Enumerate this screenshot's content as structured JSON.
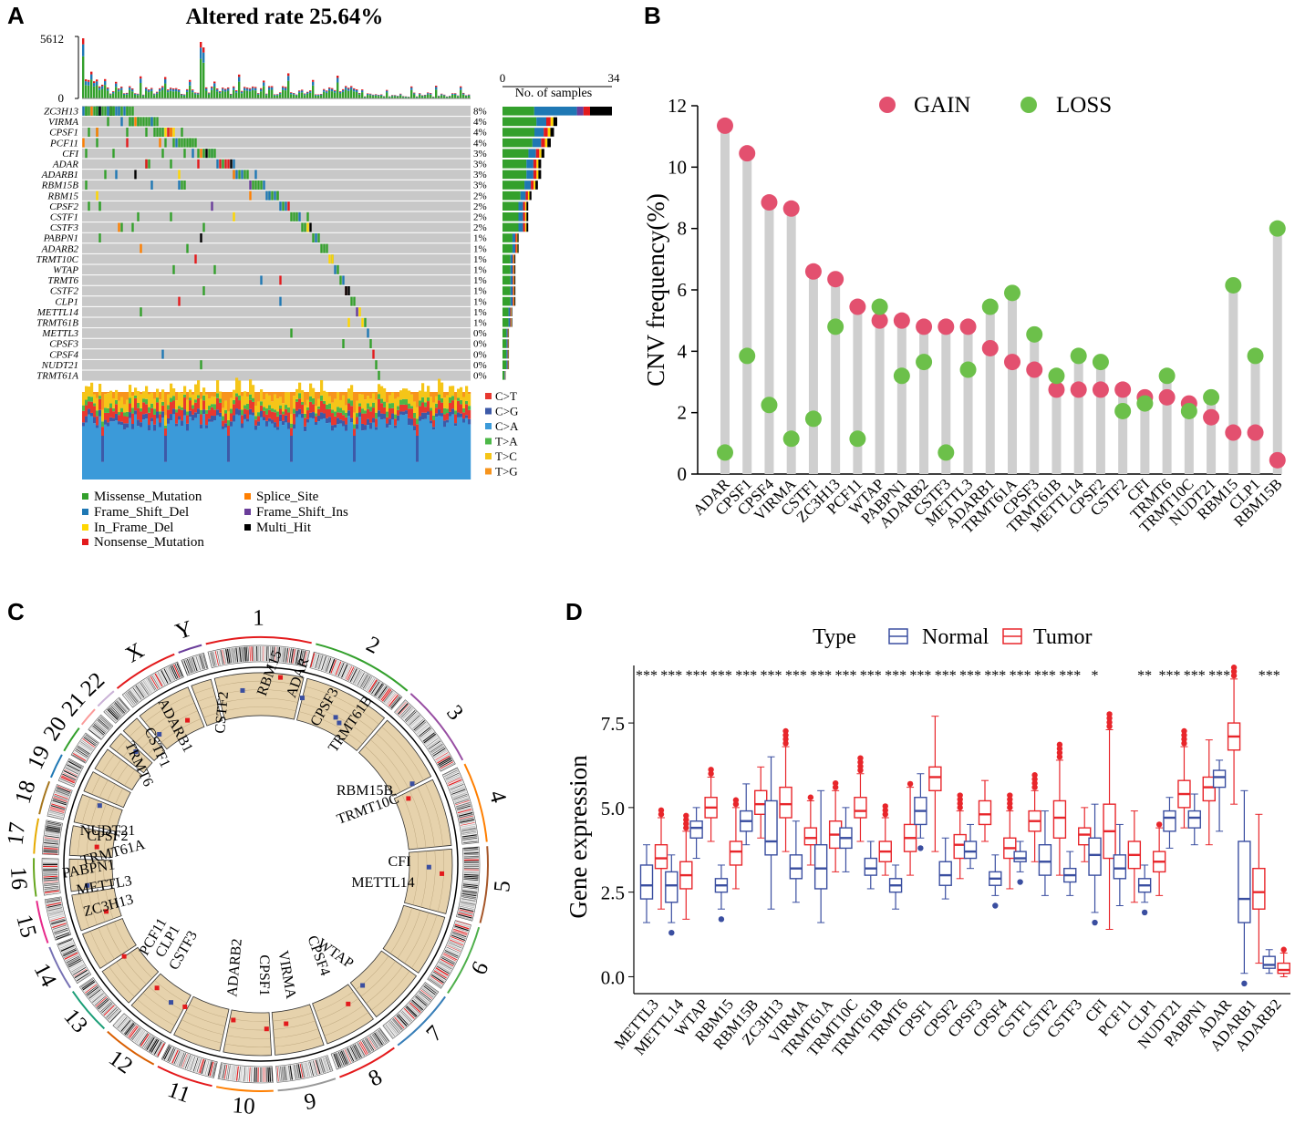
{
  "panel_labels": [
    "A",
    "B",
    "C",
    "D"
  ],
  "chart_data": [
    {
      "panel": "A",
      "type": "oncoplot",
      "title": "Altered rate 25.64%",
      "top_axis": {
        "max_label": "5612",
        "min_label": "0",
        "max": 5612
      },
      "right_axis": {
        "label": "No. of samples",
        "min_label": "0",
        "max_label": "34",
        "max": 34
      },
      "genes": [
        "ZC3H13",
        "VIRMA",
        "CPSF1",
        "PCF11",
        "CFI",
        "ADAR",
        "ADARB1",
        "RBM15B",
        "RBM15",
        "CPSF2",
        "CSTF1",
        "CSTF3",
        "PABPN1",
        "ADARB2",
        "TRMT10C",
        "WTAP",
        "TRMT6",
        "CSTF2",
        "CLP1",
        "METTL14",
        "TRMT61B",
        "METTL3",
        "CPSF3",
        "CPSF4",
        "NUDT21",
        "TRMT61A"
      ],
      "percents": [
        "8%",
        "4%",
        "4%",
        "4%",
        "3%",
        "3%",
        "3%",
        "3%",
        "2%",
        "2%",
        "2%",
        "2%",
        "1%",
        "1%",
        "1%",
        "1%",
        "1%",
        "1%",
        "1%",
        "1%",
        "1%",
        "0%",
        "0%",
        "0%",
        "0%",
        "0%"
      ],
      "sample_counts": [
        34,
        17,
        16,
        15,
        13,
        12,
        12,
        11,
        9,
        8,
        8,
        8,
        5,
        5,
        4,
        4,
        4,
        4,
        4,
        3,
        3,
        2,
        2,
        2,
        2,
        1
      ],
      "legend": [
        {
          "label": "Missense_Mutation",
          "color": "#33a02c"
        },
        {
          "label": "Frame_Shift_Del",
          "color": "#1f78b4"
        },
        {
          "label": "In_Frame_Del",
          "color": "#ffd700"
        },
        {
          "label": "Nonsense_Mutation",
          "color": "#e31a1c"
        },
        {
          "label": "Splice_Site",
          "color": "#ff7f00"
        },
        {
          "label": "Frame_Shift_Ins",
          "color": "#6a3d9a"
        },
        {
          "label": "Multi_Hit",
          "color": "#000000"
        }
      ],
      "titv_legend": [
        {
          "label": "C>T",
          "color": "#e8382f"
        },
        {
          "label": "C>G",
          "color": "#3d5aa8"
        },
        {
          "label": "C>A",
          "color": "#3b9ad9"
        },
        {
          "label": "T>A",
          "color": "#4db848"
        },
        {
          "label": "T>C",
          "color": "#f5c518"
        },
        {
          "label": "T>G",
          "color": "#f7941d"
        }
      ]
    },
    {
      "panel": "B",
      "type": "scatter",
      "ylabel": "CNV frequency(%)",
      "ylim": [
        0,
        12
      ],
      "yticks": [
        "0",
        "2",
        "4",
        "6",
        "8",
        "10",
        "12"
      ],
      "categories": [
        "ADAR",
        "CPSF1",
        "CPSF4",
        "VIRMA",
        "CSTF1",
        "ZC3H13",
        "PCF11",
        "WTAP",
        "PABPN1",
        "ADARB2",
        "CSTF3",
        "METTL3",
        "ADARB1",
        "TRMT61A",
        "CPSF3",
        "TRMT61B",
        "METTL14",
        "CPSF2",
        "CSTF2",
        "CFI",
        "TRMT6",
        "TRMT10C",
        "NUDT21",
        "RBM15",
        "CLP1",
        "RBM15B"
      ],
      "series": [
        {
          "name": "GAIN",
          "color": "#e3506f",
          "values": [
            11.35,
            10.45,
            8.85,
            8.65,
            6.6,
            6.35,
            5.45,
            5.0,
            5.0,
            4.8,
            4.8,
            4.8,
            4.1,
            3.65,
            3.4,
            2.75,
            2.75,
            2.75,
            2.75,
            2.5,
            2.5,
            2.3,
            1.85,
            1.35,
            1.35,
            0.45
          ]
        },
        {
          "name": "LOSS",
          "color": "#6cc04a",
          "values": [
            0.7,
            3.85,
            2.25,
            1.15,
            1.8,
            4.8,
            1.15,
            5.45,
            3.2,
            3.65,
            0.7,
            3.4,
            5.45,
            5.9,
            4.55,
            3.2,
            3.85,
            3.65,
            2.05,
            2.3,
            3.2,
            2.05,
            2.5,
            6.15,
            3.85,
            8.0
          ]
        }
      ]
    },
    {
      "panel": "C",
      "type": "circos",
      "chromosomes": [
        "1",
        "2",
        "3",
        "4",
        "5",
        "6",
        "7",
        "8",
        "9",
        "10",
        "11",
        "12",
        "13",
        "14",
        "15",
        "16",
        "17",
        "18",
        "19",
        "20",
        "21",
        "22",
        "X",
        "Y"
      ],
      "gene_labels": [
        "RBM15",
        "ADAR",
        "CPSF3",
        "TRMT61B",
        "RBM15B",
        "TRMT10C",
        "CFI",
        "METTL14",
        "WTAP",
        "CPSF4",
        "VIRMA",
        "CPSF1",
        "ADARB2",
        "CSTF3",
        "CLP1",
        "PCF11",
        "ZC3H13",
        "METTL3",
        "PABPN1",
        "TRMT61A",
        "CPSF2",
        "NUDT21",
        "TRMT6",
        "CSTF1",
        "ADARB1",
        "CSTF2"
      ]
    },
    {
      "panel": "D",
      "type": "boxplot",
      "ylabel": "Gene expression",
      "legend_title": "Type",
      "ylim": [
        -0.5,
        9.2
      ],
      "yticks": [
        "0.0",
        "2.5",
        "5.0",
        "7.5"
      ],
      "series_meta": [
        {
          "name": "Normal",
          "color": "#3a4ea0"
        },
        {
          "name": "Tumor",
          "color": "#e8262b"
        }
      ],
      "categories": [
        "METTL3",
        "METTL14",
        "WTAP",
        "RBM15",
        "RBM15B",
        "ZC3H13",
        "VIRMA",
        "TRMT61A",
        "TRMT10C",
        "TRMT61B",
        "TRMT6",
        "CPSF1",
        "CPSF2",
        "CPSF3",
        "CPSF4",
        "CSTF1",
        "CSTF2",
        "CSTF3",
        "CFI",
        "PCF11",
        "CLP1",
        "NUDT21",
        "PABPN1",
        "ADAR",
        "ADARB1",
        "ADARB2"
      ],
      "significance": [
        "***",
        "***",
        "***",
        "***",
        "***",
        "***",
        "***",
        "***",
        "***",
        "***",
        "***",
        "***",
        "***",
        "***",
        "***",
        "***",
        "***",
        "***",
        "*",
        "",
        "**",
        "***",
        "***",
        "***",
        "",
        "***"
      ],
      "normal": [
        [
          1.6,
          2.3,
          2.7,
          3.3,
          3.9
        ],
        [
          1.6,
          2.2,
          2.7,
          3.1,
          3.6
        ],
        [
          3.5,
          4.1,
          4.4,
          4.6,
          5.0
        ],
        [
          2.0,
          2.5,
          2.7,
          2.9,
          3.3
        ],
        [
          3.9,
          4.3,
          4.6,
          4.9,
          5.7
        ],
        [
          2.0,
          3.6,
          4.0,
          5.2,
          6.5
        ],
        [
          2.2,
          2.9,
          3.2,
          3.6,
          4.6
        ],
        [
          1.6,
          2.6,
          3.2,
          3.9,
          5.5
        ],
        [
          3.1,
          3.8,
          4.1,
          4.4,
          5.0
        ],
        [
          2.6,
          3.0,
          3.2,
          3.5,
          4.0
        ],
        [
          2.0,
          2.5,
          2.7,
          2.9,
          3.3
        ],
        [
          4.1,
          4.5,
          4.9,
          5.3,
          6.0
        ],
        [
          2.3,
          2.7,
          3.0,
          3.4,
          4.1
        ],
        [
          3.2,
          3.5,
          3.7,
          4.0,
          4.5
        ],
        [
          2.4,
          2.7,
          2.9,
          3.1,
          3.6
        ],
        [
          3.1,
          3.4,
          3.5,
          3.7,
          4.0
        ],
        [
          2.4,
          3.0,
          3.4,
          3.9,
          4.9
        ],
        [
          2.4,
          2.8,
          3.0,
          3.2,
          3.7
        ],
        [
          1.9,
          3.0,
          3.6,
          4.1,
          5.1
        ],
        [
          2.1,
          2.9,
          3.2,
          3.6,
          4.5
        ],
        [
          2.2,
          2.5,
          2.7,
          2.9,
          3.3
        ],
        [
          3.8,
          4.3,
          4.7,
          4.9,
          5.3
        ],
        [
          3.9,
          4.4,
          4.7,
          4.9,
          5.4
        ],
        [
          4.3,
          5.6,
          5.9,
          6.1,
          6.4
        ],
        [
          0.1,
          1.6,
          2.3,
          4.0,
          5.5
        ],
        [
          0.1,
          0.25,
          0.35,
          0.6,
          0.8
        ]
      ],
      "tumor": [
        [
          2.0,
          3.2,
          3.5,
          3.9,
          4.7
        ],
        [
          1.7,
          2.6,
          3.0,
          3.4,
          4.3
        ],
        [
          4.0,
          4.7,
          5.0,
          5.3,
          5.9
        ],
        [
          2.6,
          3.3,
          3.7,
          4.0,
          5.0
        ],
        [
          4.1,
          4.8,
          5.1,
          5.5,
          6.2
        ],
        [
          3.7,
          4.7,
          5.1,
          5.6,
          6.8
        ],
        [
          3.3,
          3.9,
          4.1,
          4.4,
          5.2
        ],
        [
          3.1,
          3.8,
          4.2,
          4.6,
          5.5
        ],
        [
          4.0,
          4.7,
          4.9,
          5.3,
          6.0
        ],
        [
          3.0,
          3.4,
          3.7,
          4.0,
          4.7
        ],
        [
          3.0,
          3.7,
          4.1,
          4.5,
          5.6
        ],
        [
          3.7,
          5.5,
          5.9,
          6.2,
          7.7
        ],
        [
          2.9,
          3.5,
          3.9,
          4.2,
          4.9
        ],
        [
          4.0,
          4.5,
          4.8,
          5.2,
          5.8
        ],
        [
          2.6,
          3.5,
          3.8,
          4.1,
          4.9
        ],
        [
          3.4,
          4.3,
          4.6,
          4.9,
          5.5
        ],
        [
          3.0,
          4.1,
          4.7,
          5.2,
          6.4
        ],
        [
          3.4,
          3.9,
          4.2,
          4.4,
          5.0
        ],
        [
          1.4,
          3.5,
          4.3,
          5.1,
          7.3
        ],
        [
          2.2,
          3.2,
          3.6,
          4.0,
          4.9
        ],
        [
          2.4,
          3.1,
          3.4,
          3.7,
          4.4
        ],
        [
          4.4,
          5.0,
          5.4,
          5.8,
          6.8
        ],
        [
          3.9,
          5.2,
          5.6,
          5.9,
          7.0
        ],
        [
          5.1,
          6.7,
          7.1,
          7.5,
          8.8
        ],
        [
          0.4,
          2.0,
          2.5,
          3.2,
          4.8
        ],
        [
          0.0,
          0.1,
          0.2,
          0.4,
          0.7
        ]
      ]
    }
  ]
}
